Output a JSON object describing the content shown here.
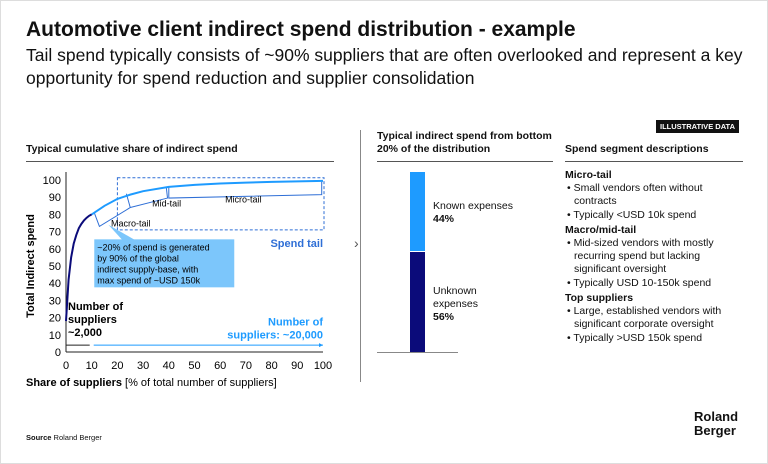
{
  "title": "Automotive client indirect spend distribution - example",
  "subtitle": "Tail spend typically consists of ~90% suppliers that are often overlooked and represent a key opportunity for spend reduction and supplier consolidation",
  "badge": "ILLUSTRATIVE DATA",
  "source_label": "Source",
  "source_value": "Roland Berger",
  "logo": [
    "Roland",
    "Berger"
  ],
  "colors": {
    "dark": "#0b0b7a",
    "light": "#1e9bff",
    "mid": "#2f6fd6",
    "callout": "#7cc6fb"
  },
  "chart_data": [
    {
      "type": "line",
      "title": "Typical cumulative share of indirect spend",
      "xlabel": "Share of suppliers",
      "xlabel_suffix": "[% of total number of suppliers]",
      "ylabel": "Total Indirect spend",
      "xlim": [
        0,
        100
      ],
      "ylim": [
        0,
        100
      ],
      "xticks": [
        0,
        10,
        20,
        30,
        40,
        50,
        60,
        70,
        80,
        90,
        100
      ],
      "yticks": [
        0,
        10,
        20,
        30,
        40,
        50,
        60,
        70,
        80,
        90,
        100
      ],
      "series": [
        {
          "name": "Top suppliers",
          "x": [
            0,
            1,
            2,
            3,
            4,
            5,
            6,
            7,
            8,
            9,
            10
          ],
          "y": [
            18,
            42,
            55,
            63,
            68,
            72,
            74.5,
            76.5,
            78,
            79.2,
            80
          ]
        },
        {
          "name": "Spend tail",
          "x": [
            10,
            15,
            20,
            25,
            30,
            40,
            50,
            60,
            70,
            80,
            90,
            100
          ],
          "y": [
            80,
            85,
            89,
            91.5,
            93.5,
            96,
            97.2,
            98,
            98.5,
            98.9,
            99.2,
            99.5
          ]
        }
      ],
      "segments": [
        "Macro-tail",
        "Mid-tail",
        "Micro-tail"
      ],
      "spend_tail_label": "Spend tail",
      "callout": "~20% of spend is generated by 90% of the global indirect supply-base, with max spend of ~USD 150k",
      "suppliers_left": "Number of suppliers ~2,000",
      "suppliers_right": "Number of suppliers: ~20,000"
    },
    {
      "type": "bar",
      "title": "Typical indirect spend from bottom 20% of the distribution",
      "categories": [
        "Known expenses",
        "Unknown expenses"
      ],
      "values": [
        44,
        56
      ],
      "value_labels": [
        "44%",
        "56%"
      ]
    }
  ],
  "descriptions": {
    "title": "Spend segment descriptions",
    "segments": [
      {
        "name": "Micro-tail",
        "bullets": [
          "Small vendors often without contracts",
          "Typically <USD 10k spend"
        ]
      },
      {
        "name": "Macro/mid-tail",
        "bullets": [
          "Mid-sized vendors with mostly recurring spend but lacking significant oversight",
          "Typically USD 10-150k spend"
        ]
      },
      {
        "name": "Top suppliers",
        "bullets": [
          "Large, established vendors with significant corporate oversight",
          "Typically >USD 150k spend"
        ]
      }
    ]
  }
}
